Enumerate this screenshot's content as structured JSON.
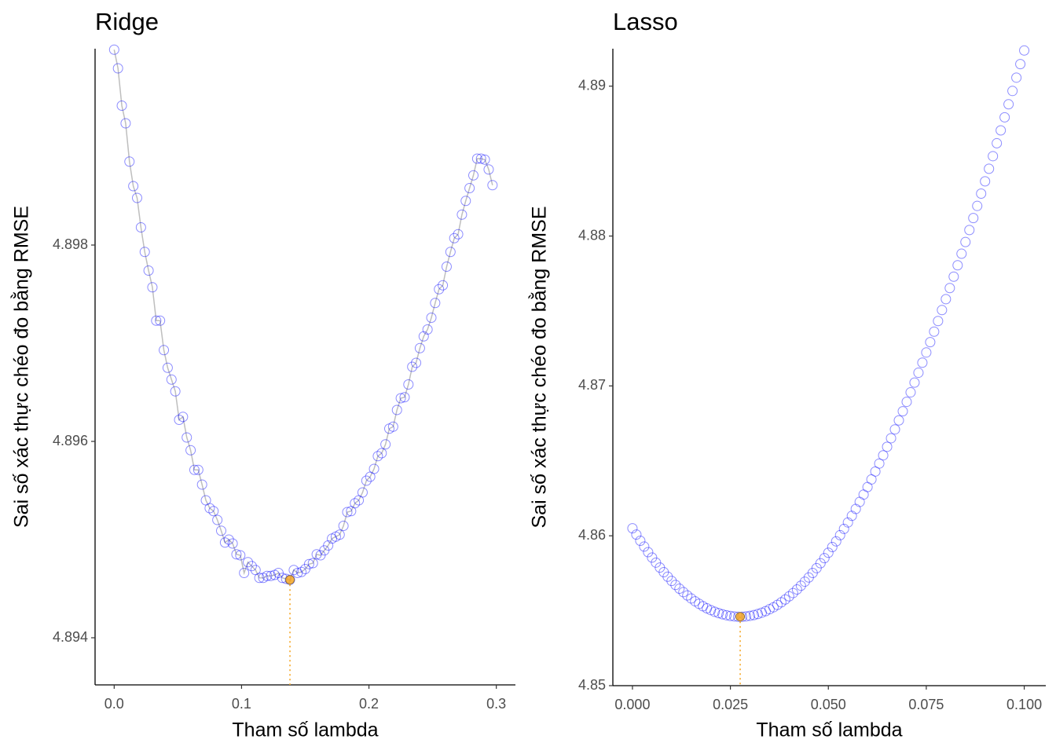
{
  "chart_data": [
    {
      "type": "line",
      "title": "Ridge",
      "xlabel": "Tham số lambda",
      "ylabel": "Sai số xác thực chéo đo bằng RMSE",
      "x": [
        0,
        0.003,
        0.006,
        0.009,
        0.012,
        0.015,
        0.018,
        0.021,
        0.024,
        0.027,
        0.03,
        0.033,
        0.036,
        0.039,
        0.042,
        0.045,
        0.048,
        0.051,
        0.054,
        0.057,
        0.06,
        0.063,
        0.066,
        0.069,
        0.072,
        0.075,
        0.078,
        0.081,
        0.084,
        0.087,
        0.09,
        0.093,
        0.096,
        0.099,
        0.102,
        0.105,
        0.108,
        0.111,
        0.114,
        0.117,
        0.12,
        0.123,
        0.126,
        0.129,
        0.132,
        0.135,
        0.138,
        0.141,
        0.144,
        0.147,
        0.15,
        0.153,
        0.156,
        0.159,
        0.162,
        0.165,
        0.168,
        0.171,
        0.174,
        0.177,
        0.18,
        0.183,
        0.186,
        0.189,
        0.192,
        0.195,
        0.198,
        0.201,
        0.204,
        0.207,
        0.21,
        0.213,
        0.216,
        0.219,
        0.222,
        0.225,
        0.228,
        0.231,
        0.234,
        0.237,
        0.24,
        0.243,
        0.246,
        0.249,
        0.252,
        0.255,
        0.258,
        0.261,
        0.264,
        0.267,
        0.27,
        0.273,
        0.276,
        0.279,
        0.282,
        0.285,
        0.288,
        0.291,
        0.294,
        0.297
      ],
      "series": [
        {
          "color": "#0000ff",
          "line_color": "#bebebe",
          "values": [
            4.89999,
            4.8998,
            4.89942,
            4.89924,
            4.89885,
            4.8986,
            4.89848,
            4.89818,
            4.89793,
            4.89774,
            4.89757,
            4.89723,
            4.89723,
            4.89693,
            4.89675,
            4.89663,
            4.89651,
            4.89622,
            4.89625,
            4.89604,
            4.89591,
            4.89571,
            4.89571,
            4.89556,
            4.8954,
            4.89532,
            4.89529,
            4.8952,
            4.89509,
            4.89497,
            4.895,
            4.89496,
            4.89485,
            4.89484,
            4.89466,
            4.89477,
            4.89473,
            4.89469,
            4.89461,
            4.89461,
            4.89463,
            4.89463,
            4.89464,
            4.89466,
            4.89461,
            4.8946,
            4.89459,
            4.89469,
            4.89466,
            4.89467,
            4.8947,
            4.89475,
            4.89476,
            4.89485,
            4.89484,
            4.89489,
            4.89494,
            4.89501,
            4.89503,
            4.89505,
            4.89514,
            4.89528,
            4.89529,
            4.89537,
            4.8954,
            4.89548,
            4.8956,
            4.89564,
            4.89572,
            4.89585,
            4.89588,
            4.89597,
            4.89613,
            4.89615,
            4.89632,
            4.89644,
            4.89645,
            4.89658,
            4.89676,
            4.8968,
            4.89695,
            4.89707,
            4.89714,
            4.89726,
            4.89741,
            4.89755,
            4.89759,
            4.89778,
            4.89793,
            4.89807,
            4.89811,
            4.89831,
            4.89845,
            4.89858,
            4.89871,
            4.89888,
            4.89888,
            4.89887,
            4.89877,
            4.89861
          ]
        }
      ],
      "best": {
        "x": 0.138,
        "y": 4.89459,
        "color": "#f5a623"
      },
      "xlim": [
        -0.015,
        0.315
      ],
      "ylim": [
        4.89352,
        4.9
      ],
      "xticks": [
        {
          "value": 0,
          "label": "0.0"
        },
        0.1,
        0.2,
        0.3
      ],
      "yticks": [
        4.894,
        4.896,
        4.898
      ]
    },
    {
      "type": "scatter",
      "title": "Lasso",
      "xlabel": "Tham số lambda",
      "ylabel": "Sai số xác thực chéo đo bằng RMSE",
      "x": [
        0,
        0.001,
        0.002,
        0.003,
        0.004,
        0.005,
        0.006,
        0.007,
        0.008,
        0.009,
        0.01,
        0.011,
        0.012,
        0.013,
        0.014,
        0.015,
        0.016,
        0.017,
        0.018,
        0.019,
        0.02,
        0.021,
        0.022,
        0.023,
        0.024,
        0.025,
        0.026,
        0.027,
        0.028,
        0.029,
        0.03,
        0.031,
        0.032,
        0.033,
        0.034,
        0.035,
        0.036,
        0.037,
        0.038,
        0.039,
        0.04,
        0.041,
        0.042,
        0.043,
        0.044,
        0.045,
        0.046,
        0.047,
        0.048,
        0.049,
        0.05,
        0.051,
        0.052,
        0.053,
        0.054,
        0.055,
        0.056,
        0.057,
        0.058,
        0.059,
        0.06,
        0.061,
        0.062,
        0.063,
        0.064,
        0.065,
        0.066,
        0.067,
        0.068,
        0.069,
        0.07,
        0.071,
        0.072,
        0.073,
        0.074,
        0.075,
        0.076,
        0.077,
        0.078,
        0.079,
        0.08,
        0.081,
        0.082,
        0.083,
        0.084,
        0.085,
        0.086,
        0.087,
        0.088,
        0.089,
        0.09,
        0.091,
        0.092,
        0.093,
        0.094,
        0.095,
        0.096,
        0.097,
        0.098,
        0.099,
        0.1
      ],
      "series": [
        {
          "color": "#0000ff",
          "values": [
            4.8605,
            4.86008,
            4.85967,
            4.85928,
            4.85891,
            4.85855,
            4.85821,
            4.85788,
            4.85757,
            4.85727,
            4.85699,
            4.85672,
            4.85647,
            4.85624,
            4.85602,
            4.85582,
            4.85563,
            4.85546,
            4.8553,
            4.85516,
            4.85504,
            4.85493,
            4.85484,
            4.85476,
            4.8547,
            4.85465,
            4.85462,
            4.8546,
            4.8546,
            4.85462,
            4.85466,
            4.85471,
            4.85478,
            4.85487,
            4.85497,
            4.8551,
            4.85523,
            4.85539,
            4.85556,
            4.85575,
            4.85596,
            4.85618,
            4.85642,
            4.85667,
            4.85694,
            4.85722,
            4.85752,
            4.85784,
            4.85817,
            4.85851,
            4.85887,
            4.85925,
            4.85963,
            4.86004,
            4.86046,
            4.86089,
            4.86133,
            4.86179,
            4.86226,
            4.86275,
            4.86325,
            4.86376,
            4.86429,
            4.86482,
            4.86537,
            4.86594,
            4.86651,
            4.8671,
            4.8677,
            4.86831,
            4.86894,
            4.86957,
            4.87022,
            4.87088,
            4.87155,
            4.87223,
            4.87292,
            4.87362,
            4.87433,
            4.87506,
            4.87579,
            4.87653,
            4.87729,
            4.87805,
            4.87882,
            4.8796,
            4.8804,
            4.8812,
            4.88201,
            4.88283,
            4.88365,
            4.88449,
            4.88533,
            4.88619,
            4.88705,
            4.88792,
            4.88879,
            4.88968,
            4.89057,
            4.89147,
            4.89238
          ]
        }
      ],
      "best": {
        "x": 0.0275,
        "y": 4.8546,
        "color": "#f5a623"
      },
      "xlim": [
        -0.005,
        0.1055
      ],
      "ylim": [
        4.85,
        4.8925
      ],
      "xticks": [
        {
          "value": 0,
          "label": "0.000"
        },
        0.025,
        {
          "value": 0.05,
          "label": "0.050"
        },
        0.075,
        {
          "value": 0.1,
          "label": "0.100"
        }
      ],
      "yticks": [
        4.85,
        4.86,
        4.87,
        4.88,
        4.89
      ]
    }
  ]
}
